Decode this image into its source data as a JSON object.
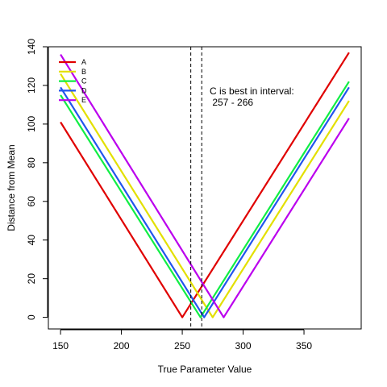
{
  "chart_data": {
    "type": "line",
    "xlabel": "True Parameter Value",
    "ylabel": "Distance from Mean",
    "xlim": [
      140,
      397
    ],
    "ylim": [
      -6,
      140
    ],
    "x_ticks": [
      150,
      200,
      250,
      300,
      350
    ],
    "y_ticks": [
      0,
      20,
      40,
      60,
      80,
      100,
      120,
      140
    ],
    "grid": false,
    "legend_position": "top-left",
    "series": [
      {
        "name": "A",
        "color": "#e00000",
        "x": [
          150,
          250,
          387
        ],
        "y": [
          101,
          0,
          137
        ]
      },
      {
        "name": "B",
        "color": "#e3e000",
        "x": [
          150,
          275,
          387
        ],
        "y": [
          126,
          0,
          112
        ]
      },
      {
        "name": "C",
        "color": "#11ee44",
        "x": [
          150,
          265,
          387
        ],
        "y": [
          115,
          0,
          122
        ]
      },
      {
        "name": "D",
        "color": "#2255ee",
        "x": [
          150,
          268,
          387
        ],
        "y": [
          119,
          0,
          119
        ]
      },
      {
        "name": "E",
        "color": "#bb00ee",
        "x": [
          150,
          284,
          387
        ],
        "y": [
          136,
          0,
          103
        ]
      }
    ],
    "vlines": [
      257,
      266
    ],
    "annotation": {
      "line1": "C is best in interval:",
      "line2": " 257 - 266"
    }
  }
}
